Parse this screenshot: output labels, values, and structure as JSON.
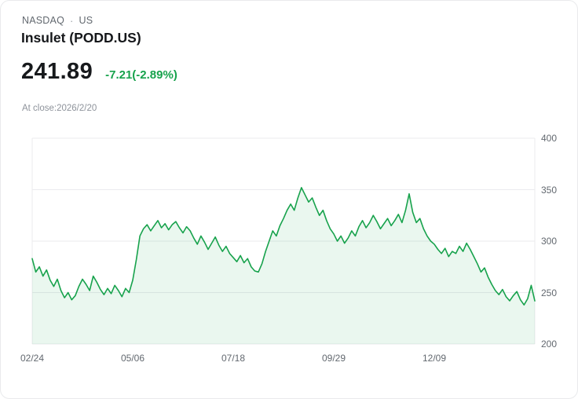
{
  "header": {
    "exchange": "NASDAQ",
    "separator": "·",
    "region": "US",
    "title": "Insulet (PODD.US)",
    "price": "241.89",
    "change": "-7.21(-2.89%)",
    "close_note": "At close:2026/2/20"
  },
  "colors": {
    "line": "#17a24c",
    "fill": "#17a24c",
    "change_text": "#17a24c",
    "grid": "#ebebee",
    "axis_text": "#62686f"
  },
  "chart_data": {
    "type": "area",
    "title": "Insulet (PODD.US) price history",
    "ylim": [
      200,
      400
    ],
    "y_ticks": [
      200,
      250,
      300,
      350,
      400
    ],
    "y_axis_side": "right",
    "grid": true,
    "legend": "none",
    "x_tick_labels": [
      "02/24",
      "05/06",
      "07/18",
      "09/29",
      "12/09"
    ],
    "x_tick_positions": [
      0,
      0.2,
      0.4,
      0.6,
      0.8
    ],
    "values": [
      283,
      270,
      275,
      266,
      272,
      262,
      256,
      263,
      252,
      245,
      250,
      243,
      247,
      256,
      263,
      258,
      252,
      266,
      260,
      253,
      248,
      254,
      249,
      257,
      252,
      246,
      254,
      250,
      262,
      282,
      305,
      312,
      316,
      310,
      315,
      320,
      313,
      317,
      311,
      316,
      319,
      313,
      308,
      314,
      310,
      303,
      297,
      305,
      299,
      292,
      298,
      304,
      296,
      290,
      295,
      288,
      284,
      280,
      286,
      279,
      283,
      275,
      271,
      270,
      278,
      290,
      300,
      310,
      305,
      315,
      322,
      330,
      336,
      330,
      342,
      352,
      345,
      338,
      342,
      333,
      325,
      330,
      320,
      312,
      307,
      300,
      305,
      298,
      303,
      310,
      305,
      314,
      320,
      313,
      318,
      325,
      319,
      312,
      317,
      322,
      315,
      320,
      326,
      318,
      330,
      346,
      328,
      318,
      322,
      312,
      305,
      300,
      297,
      292,
      288,
      293,
      285,
      290,
      288,
      295,
      290,
      298,
      292,
      285,
      278,
      270,
      274,
      265,
      258,
      252,
      248,
      253,
      246,
      242,
      247,
      251,
      243,
      238,
      244,
      257,
      241.89
    ]
  }
}
